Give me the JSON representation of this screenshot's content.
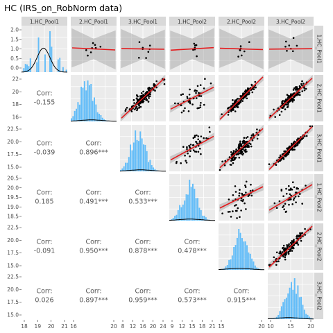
{
  "title": "HC (IRS_on_RobNorm data)",
  "chart_data": {
    "type": "scatter-matrix",
    "title": "HC (IRS_on_RobNorm data)",
    "variables": [
      "1.HC_Pool1",
      "2.HC_Pool1",
      "3.HC_Pool1",
      "1.HC_Pool2",
      "2.HC_Pool2",
      "3.HC_Pool2"
    ],
    "ranges": [
      [
        17.6,
        21.4
      ],
      [
        14.5,
        23.5
      ],
      [
        8.5,
        24.5
      ],
      [
        8.5,
        21.2
      ],
      [
        13.3,
        22.2
      ],
      [
        8.5,
        24.5
      ]
    ],
    "bottom_ticks": [
      [
        "18",
        "19",
        "20",
        "21"
      ],
      [
        "16",
        "20"
      ],
      [
        "8",
        "12",
        "16",
        "20",
        "24"
      ],
      [
        "9",
        "12",
        "15",
        "18",
        "21"
      ],
      [
        "15",
        "20"
      ],
      [
        "10",
        "15",
        "20"
      ]
    ],
    "left_ticks": [
      [
        "2.0",
        "1.5",
        "1.0",
        "0.5",
        "0.0"
      ],
      [
        "22",
        "20",
        "18",
        "16"
      ],
      [
        "22.5",
        "20.0",
        "17.5",
        "15.0"
      ],
      [
        "20.5",
        "20.0",
        "19.5",
        "19.0",
        "18.5"
      ],
      [
        "22.5",
        "20.0",
        "17.5",
        "15.0"
      ],
      [
        "22.5",
        "20.0",
        "17.5",
        "15.0"
      ]
    ],
    "correlations": [
      {
        "pair": [
          "1.HC_Pool1",
          "2.HC_Pool1"
        ],
        "corr": "-0.155"
      },
      {
        "pair": [
          "1.HC_Pool1",
          "3.HC_Pool1"
        ],
        "corr": "-0.039"
      },
      {
        "pair": [
          "1.HC_Pool1",
          "1.HC_Pool2"
        ],
        "corr": "0.185"
      },
      {
        "pair": [
          "1.HC_Pool1",
          "2.HC_Pool2"
        ],
        "corr": "-0.091"
      },
      {
        "pair": [
          "1.HC_Pool1",
          "3.HC_Pool2"
        ],
        "corr": "0.026"
      },
      {
        "pair": [
          "2.HC_Pool1",
          "3.HC_Pool1"
        ],
        "corr": "0.896***"
      },
      {
        "pair": [
          "2.HC_Pool1",
          "1.HC_Pool2"
        ],
        "corr": "0.491***"
      },
      {
        "pair": [
          "2.HC_Pool1",
          "2.HC_Pool2"
        ],
        "corr": "0.950***"
      },
      {
        "pair": [
          "2.HC_Pool1",
          "3.HC_Pool2"
        ],
        "corr": "0.897***"
      },
      {
        "pair": [
          "3.HC_Pool1",
          "1.HC_Pool2"
        ],
        "corr": "0.533***"
      },
      {
        "pair": [
          "3.HC_Pool1",
          "2.HC_Pool2"
        ],
        "corr": "0.878***"
      },
      {
        "pair": [
          "3.HC_Pool1",
          "3.HC_Pool2"
        ],
        "corr": "0.959***"
      },
      {
        "pair": [
          "1.HC_Pool2",
          "2.HC_Pool2"
        ],
        "corr": "0.478***"
      },
      {
        "pair": [
          "1.HC_Pool2",
          "3.HC_Pool2"
        ],
        "corr": "0.573***"
      },
      {
        "pair": [
          "2.HC_Pool2",
          "3.HC_Pool2"
        ],
        "corr": "0.915***"
      }
    ],
    "corr_label": "Corr:",
    "colors": {
      "panel_bg": "#ebebeb",
      "grid": "#ffffff",
      "strip": "#d9d9d9",
      "histogram": "#64bdf8",
      "points": "#000000",
      "fit_line": "#e41a1c",
      "ribbon": "#9e9e9e"
    },
    "upper_panels": "scatter with linear fit and confidence band",
    "diagonal_panels": "histogram with density curve",
    "lower_panels": "correlation text"
  }
}
